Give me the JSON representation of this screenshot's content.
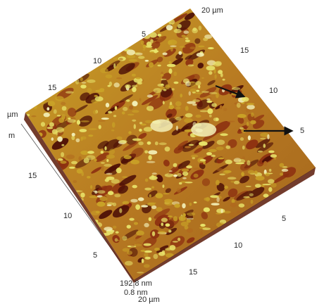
{
  "image": {
    "kind": "AFM 3D surface topography",
    "colors": {
      "low": "#4a0d06",
      "mid_low": "#8c2f10",
      "mid": "#b06a1e",
      "mid_high": "#c9a227",
      "high": "#e8e36a",
      "peak": "#f3f0b8",
      "arrow": "#111111",
      "axis": "#444444"
    }
  },
  "axes": {
    "back_right_edge": [
      "20 µm",
      "5",
      "15",
      "10",
      "5"
    ],
    "back_left_edge": [
      "10",
      "15"
    ],
    "left_edge": [
      "µm",
      "m",
      "15",
      "10",
      "5"
    ],
    "front_edge": [
      "10",
      "15",
      "5"
    ],
    "z_scale": [
      "192.8 nm",
      "0.8 nm",
      "20 µm"
    ]
  },
  "arrows": [
    {
      "label": "",
      "direction": "down-right"
    },
    {
      "label": "",
      "direction": "right"
    }
  ]
}
